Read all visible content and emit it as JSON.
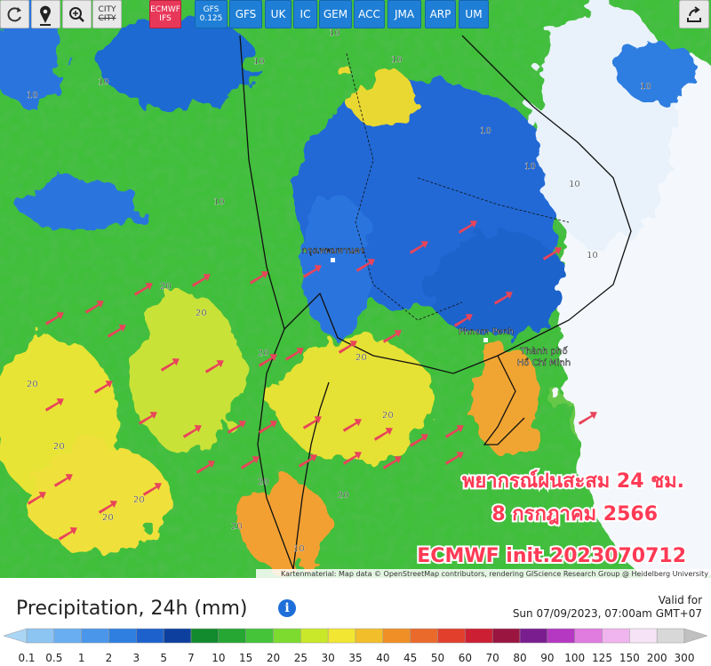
{
  "toolbar": {
    "city": "CITY",
    "city_off": "CITY",
    "models": [
      [
        "ECMWF",
        "IFS"
      ],
      [
        "GFS",
        "0.125"
      ],
      [
        "GFS"
      ],
      [
        "UK"
      ],
      [
        "IC"
      ],
      [
        "GEM"
      ],
      [
        "ACC"
      ],
      [
        "JMA"
      ],
      [
        "ARP"
      ],
      [
        "UM"
      ]
    ]
  },
  "map": {
    "overlay_lines": [
      "พยากรณ์ฝนสะสม 24 ชม.",
      "8 กรกฎาคม 2566",
      "ECMWF init.2023070712"
    ],
    "places": {
      "bangkok": "กรุงเทพมหานคร",
      "phnom_penh": "Phnom Penh",
      "hcmc_1": "Thành phố",
      "hcmc_2": "Hồ Chí Minh"
    },
    "contour_labels": [
      "10",
      "10",
      "10",
      "10",
      "10",
      "10",
      "10",
      "10",
      "10",
      "10",
      "20",
      "20",
      "20",
      "20",
      "20",
      "20",
      "20",
      "20",
      "20",
      "20",
      "20",
      "20",
      "10",
      "10"
    ],
    "attribution": "Kartenmaterial: Map data © OpenStreetMap contributors, rendering GIScience Research Group @ Heidelberg University"
  },
  "legend": {
    "title": "Precipitation, 24h (mm)",
    "valid_label": "Valid for",
    "valid_time": "Sun 07/09/2023, 07:00am GMT+07",
    "labels": [
      "0.1",
      "0.5",
      "1",
      "2",
      "3",
      "5",
      "7",
      "10",
      "15",
      "20",
      "25",
      "30",
      "35",
      "40",
      "45",
      "50",
      "60",
      "70",
      "80",
      "90",
      "100",
      "125",
      "150",
      "200",
      "300"
    ],
    "colors": [
      "#a9d6f5",
      "#8cc4f2",
      "#69aef0",
      "#4a96ea",
      "#2f7fe0",
      "#1d62cc",
      "#0d3f9e",
      "#128a2e",
      "#26a632",
      "#45c43a",
      "#7ddb30",
      "#c9e82a",
      "#f3e632",
      "#f2bf2a",
      "#ef8f26",
      "#ea6a2b",
      "#e2402d",
      "#cc1f33",
      "#9a1540",
      "#7a1d8f",
      "#b438c2",
      "#e07be0",
      "#f0b4ee",
      "#f6e3f6",
      "#d8d8d8",
      "#c0c0c0"
    ]
  }
}
